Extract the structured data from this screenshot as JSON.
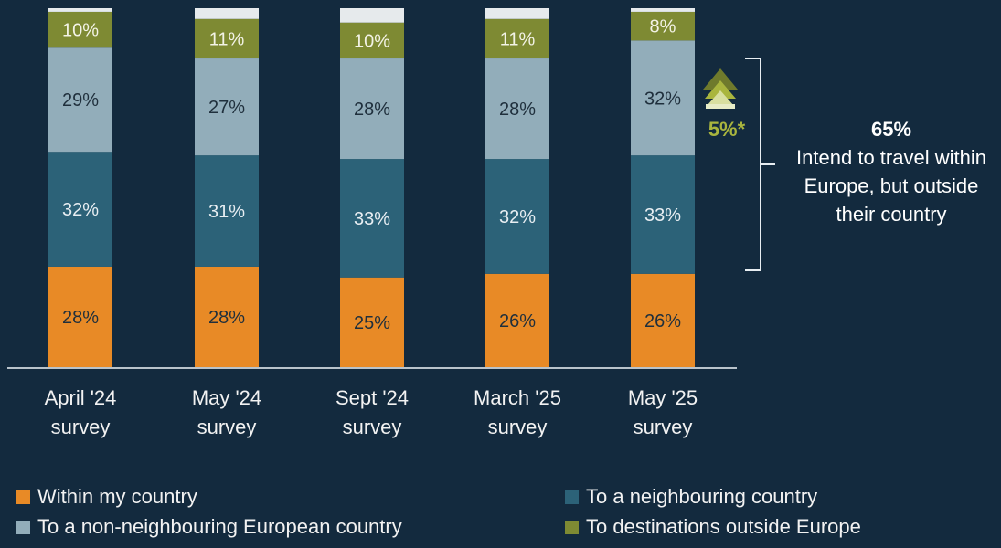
{
  "chart_data": {
    "type": "bar",
    "stacked": true,
    "categories": [
      "April '24 survey",
      "May '24 survey",
      "Sept '24 survey",
      "March '25 survey",
      "May '25 survey"
    ],
    "series": [
      {
        "name": "Within my country",
        "color": "#e88a26",
        "values": [
          28,
          28,
          25,
          26,
          26
        ]
      },
      {
        "name": "To a neighbouring country",
        "color": "#2c6278",
        "values": [
          32,
          31,
          33,
          32,
          33
        ]
      },
      {
        "name": "To a non-neighbouring European country",
        "color": "#92adba",
        "values": [
          29,
          27,
          28,
          28,
          32
        ]
      },
      {
        "name": "To destinations outside Europe",
        "color": "#7e8a33",
        "values": [
          10,
          11,
          10,
          11,
          8
        ]
      }
    ],
    "remainder_color": "#e6eaec",
    "value_labels": [
      [
        "28%",
        "32%",
        "29%",
        "10%"
      ],
      [
        "28%",
        "31%",
        "27%",
        "11%"
      ],
      [
        "25%",
        "33%",
        "28%",
        "10%"
      ],
      [
        "26%",
        "32%",
        "28%",
        "11%"
      ],
      [
        "26%",
        "33%",
        "32%",
        "8%"
      ]
    ],
    "legend_position": "bottom",
    "grid": false
  },
  "change_marker": {
    "label": "5%*",
    "direction": "up",
    "color": "#a9b53e"
  },
  "callout": {
    "percent": "65%",
    "text": "Intend to travel within Europe, but outside their country"
  },
  "legend": {
    "items": [
      {
        "label": "Within my country",
        "color": "#e88a26"
      },
      {
        "label": "To a neighbouring country",
        "color": "#2c6278"
      },
      {
        "label": "To a non-neighbouring European country",
        "color": "#92adba"
      },
      {
        "label": "To destinations outside Europe",
        "color": "#7e8a33"
      }
    ]
  }
}
